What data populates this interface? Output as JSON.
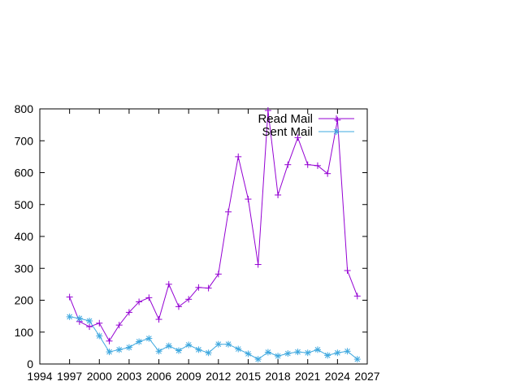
{
  "chart_data": {
    "type": "line",
    "title": "",
    "xlabel": "",
    "ylabel": "",
    "xlim": [
      1994,
      2027
    ],
    "ylim": [
      0,
      800
    ],
    "x_ticks": [
      1994,
      1997,
      2000,
      2003,
      2006,
      2009,
      2012,
      2015,
      2018,
      2021,
      2024,
      2027
    ],
    "y_ticks": [
      0,
      100,
      200,
      300,
      400,
      500,
      600,
      700,
      800
    ],
    "grid": false,
    "legend_position": "top-right",
    "series": [
      {
        "name": "Read Mail",
        "color": "#9400d3",
        "marker": "plus",
        "x": [
          1997,
          1998,
          1999,
          2000,
          2001,
          2002,
          2003,
          2004,
          2005,
          2006,
          2007,
          2008,
          2009,
          2010,
          2011,
          2012,
          2013,
          2014,
          2015,
          2016,
          2017,
          2018,
          2019,
          2020,
          2021,
          2022,
          2023,
          2024,
          2025,
          2026
        ],
        "values": [
          210,
          133,
          117,
          128,
          72,
          122,
          162,
          195,
          208,
          140,
          250,
          180,
          203,
          240,
          238,
          282,
          477,
          650,
          517,
          312,
          795,
          530,
          625,
          710,
          625,
          622,
          597,
          765,
          293,
          213
        ]
      },
      {
        "name": "Sent Mail",
        "color": "#3ea8df",
        "marker": "star",
        "x": [
          1997,
          1998,
          1999,
          2000,
          2001,
          2002,
          2003,
          2004,
          2005,
          2006,
          2007,
          2008,
          2009,
          2010,
          2011,
          2012,
          2013,
          2014,
          2015,
          2016,
          2017,
          2018,
          2019,
          2020,
          2021,
          2022,
          2023,
          2024,
          2025,
          2026
        ],
        "values": [
          148,
          143,
          135,
          88,
          38,
          45,
          52,
          70,
          80,
          40,
          57,
          42,
          60,
          45,
          35,
          62,
          62,
          47,
          32,
          15,
          37,
          25,
          33,
          38,
          35,
          45,
          27,
          35,
          40,
          15
        ]
      }
    ]
  }
}
